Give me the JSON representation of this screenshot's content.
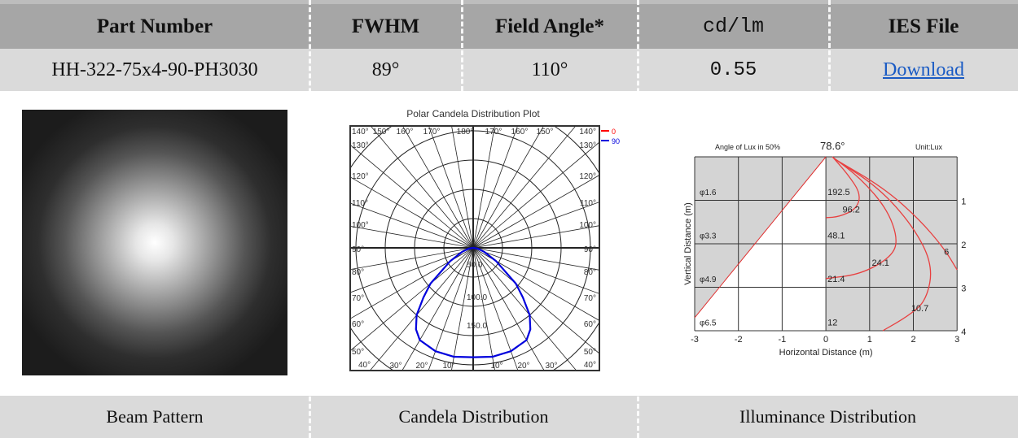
{
  "table": {
    "headers": [
      "Part Number",
      "FWHM",
      "Field Angle*",
      "cd/lm",
      "IES File"
    ],
    "values": {
      "part_number": "HH-322-75x4-90-PH3030",
      "fwhm": "89°",
      "field_angle": "110°",
      "cd_lm": "0.55",
      "ies_link": "Download"
    },
    "footers": [
      "Beam Pattern",
      "Candela Distribution",
      "Illuminance Distribution"
    ]
  },
  "chart_data": [
    {
      "type": "polar-line",
      "title": "Polar Candela Distribution Plot",
      "legend": [
        "0",
        "90"
      ],
      "legend_colors": [
        "#ff0000",
        "#0000dd"
      ],
      "radial_labels": [
        "50.0",
        "100.0",
        "150.0"
      ],
      "angle_labels_left": [
        "140°",
        "130°",
        "120°",
        "110°",
        "100°",
        "90°",
        "80°",
        "70°",
        "60°",
        "50°",
        "40°"
      ],
      "angle_labels_top": [
        "150°",
        "160°",
        "170°",
        "180°",
        "170°",
        "160°",
        "150°"
      ],
      "angle_labels_bottom": [
        "30°",
        "20°",
        "10°",
        "10°",
        "20°",
        "30°"
      ],
      "series": [
        {
          "name": "90",
          "angles": [
            0,
            10,
            20,
            30,
            35,
            40,
            45,
            50,
            60,
            70,
            80,
            90
          ],
          "values": [
            187,
            189,
            188,
            182,
            170,
            150,
            120,
            95,
            45,
            20,
            8,
            0
          ]
        }
      ]
    },
    {
      "type": "line",
      "title": "Angle of Lux in 50%",
      "angle": "78.6°",
      "unit": "Unit:Lux",
      "xlabel": "Horizontal Distance (m)",
      "ylabel": "Vertical Distance (m)",
      "xticks": [
        "-3",
        "-2",
        "-1",
        "0",
        "1",
        "2",
        "3"
      ],
      "yticks": [
        "1",
        "2",
        "3",
        "4"
      ],
      "diameters": [
        "φ1.6",
        "φ3.3",
        "φ4.9",
        "φ6.5"
      ],
      "center_lux": [
        "192.5",
        "48.1",
        "21.4",
        "12"
      ],
      "contour_labels": [
        "96.2",
        "24.1",
        "10.7",
        "6"
      ],
      "beam_line": [
        [
          0,
          0
        ],
        [
          -3,
          3.7
        ]
      ],
      "contours": [
        [
          [
            0.15,
            0
          ],
          [
            0.5,
            0.4
          ],
          [
            0.8,
            0.85
          ],
          [
            0.7,
            1.2
          ],
          [
            0.3,
            1.38
          ],
          [
            0,
            1.4
          ]
        ],
        [
          [
            0.15,
            0
          ],
          [
            0.8,
            0.5
          ],
          [
            1.4,
            1.2
          ],
          [
            1.65,
            1.9
          ],
          [
            1.5,
            2.3
          ],
          [
            0.8,
            2.7
          ],
          [
            0,
            2.8
          ]
        ],
        [
          [
            0.2,
            0.05
          ],
          [
            1.2,
            0.7
          ],
          [
            2.0,
            1.6
          ],
          [
            2.45,
            2.5
          ],
          [
            2.3,
            3.3
          ],
          [
            1.9,
            3.65
          ],
          [
            1.3,
            4.0
          ]
        ],
        [
          [
            0.2,
            0.05
          ],
          [
            1.3,
            0.7
          ],
          [
            2.1,
            1.4
          ],
          [
            2.7,
            2.1
          ],
          [
            3,
            2.6
          ]
        ]
      ]
    }
  ]
}
